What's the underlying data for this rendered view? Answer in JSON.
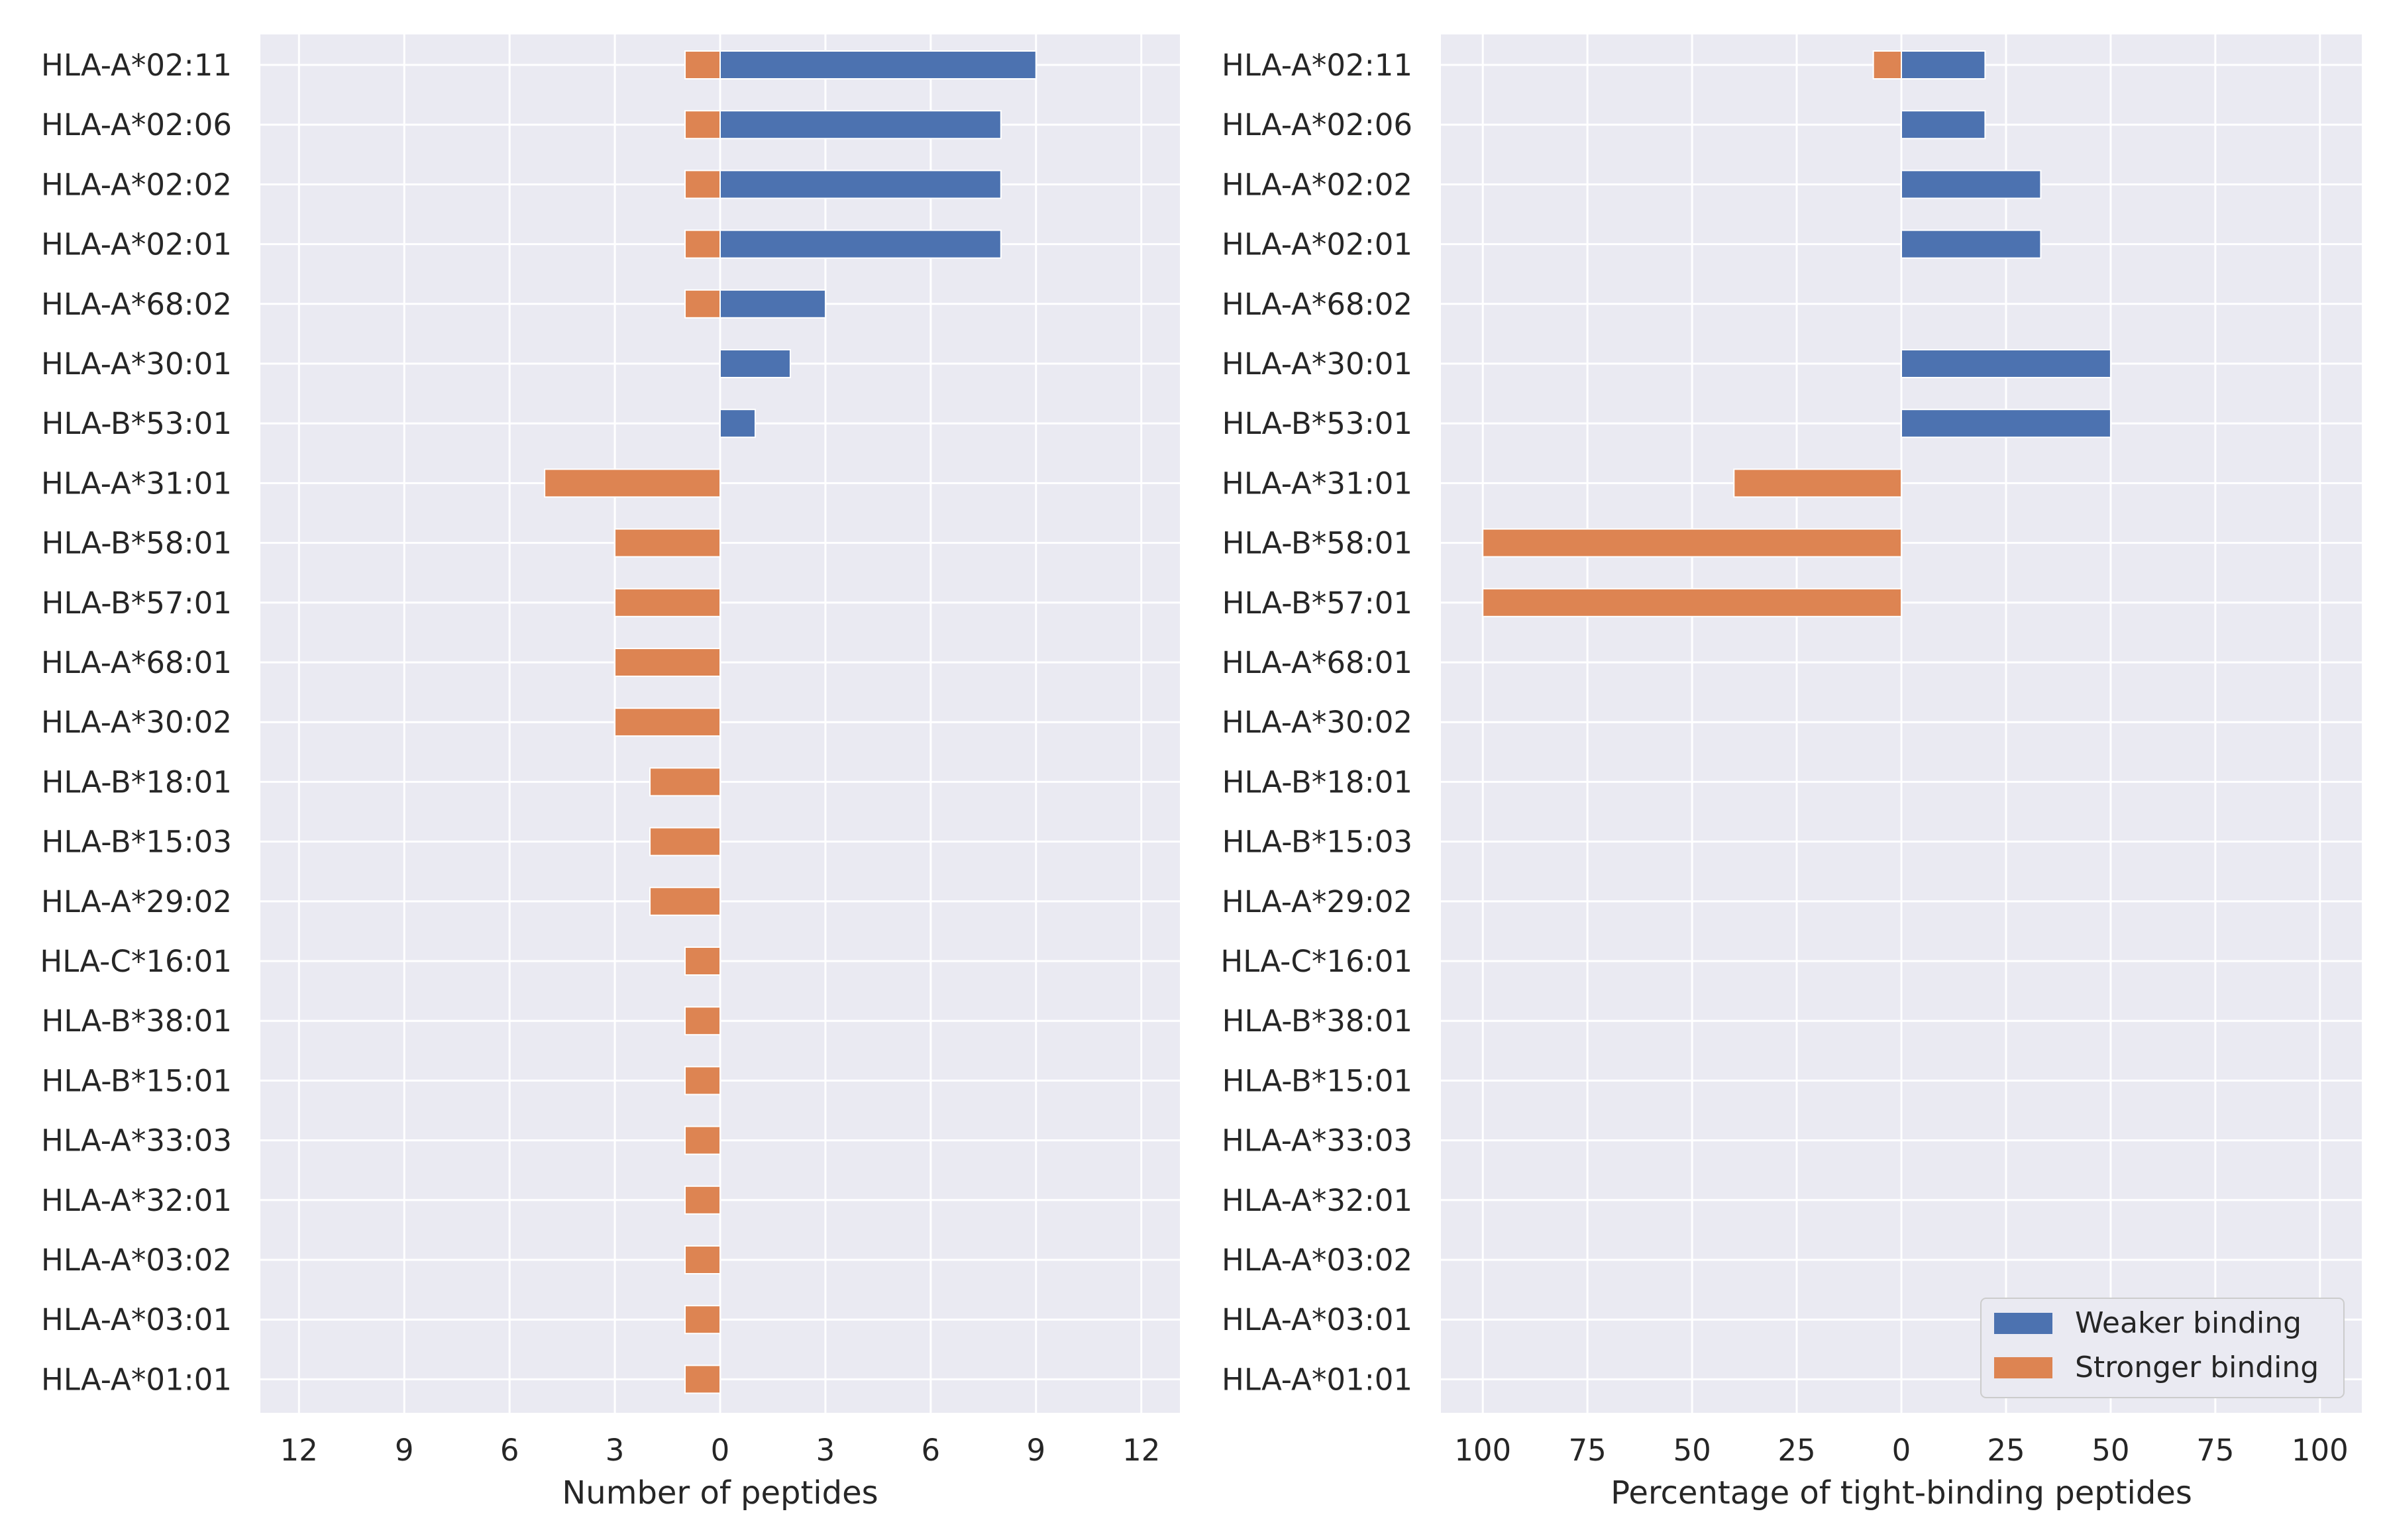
{
  "chart_data": [
    {
      "type": "bar",
      "orientation": "horizontal-diverging",
      "categories": [
        "HLA-A*02:11",
        "HLA-A*02:06",
        "HLA-A*02:02",
        "HLA-A*02:01",
        "HLA-A*68:02",
        "HLA-A*30:01",
        "HLA-B*53:01",
        "HLA-A*31:01",
        "HLA-B*58:01",
        "HLA-B*57:01",
        "HLA-A*68:01",
        "HLA-A*30:02",
        "HLA-B*18:01",
        "HLA-B*15:03",
        "HLA-A*29:02",
        "HLA-C*16:01",
        "HLA-B*38:01",
        "HLA-B*15:01",
        "HLA-A*33:03",
        "HLA-A*32:01",
        "HLA-A*03:02",
        "HLA-A*03:01",
        "HLA-A*01:01"
      ],
      "series": [
        {
          "name": "Weaker binding",
          "color": "#4c72b0",
          "direction": "right",
          "values": [
            9,
            8,
            8,
            8,
            3,
            2,
            1,
            0,
            0,
            0,
            0,
            0,
            0,
            0,
            0,
            0,
            0,
            0,
            0,
            0,
            0,
            0,
            0
          ]
        },
        {
          "name": "Stronger binding",
          "color": "#dd8452",
          "direction": "left",
          "values": [
            1,
            1,
            1,
            1,
            1,
            0,
            0,
            5,
            3,
            3,
            3,
            3,
            2,
            2,
            2,
            1,
            1,
            1,
            1,
            1,
            1,
            1,
            1
          ]
        }
      ],
      "xlim": [
        -13.1,
        13.1
      ],
      "xticks": [
        -12,
        -9,
        -6,
        -3,
        0,
        3,
        6,
        9,
        12
      ],
      "xtick_labels": [
        "12",
        "9",
        "6",
        "3",
        "0",
        "3",
        "6",
        "9",
        "12"
      ],
      "xlabel": "Number of peptides",
      "ylabel": "",
      "grid": true
    },
    {
      "type": "bar",
      "orientation": "horizontal-diverging",
      "categories": [
        "HLA-A*02:11",
        "HLA-A*02:06",
        "HLA-A*02:02",
        "HLA-A*02:01",
        "HLA-A*68:02",
        "HLA-A*30:01",
        "HLA-B*53:01",
        "HLA-A*31:01",
        "HLA-B*58:01",
        "HLA-B*57:01",
        "HLA-A*68:01",
        "HLA-A*30:02",
        "HLA-B*18:01",
        "HLA-B*15:03",
        "HLA-A*29:02",
        "HLA-C*16:01",
        "HLA-B*38:01",
        "HLA-B*15:01",
        "HLA-A*33:03",
        "HLA-A*32:01",
        "HLA-A*03:02",
        "HLA-A*03:01",
        "HLA-A*01:01"
      ],
      "series": [
        {
          "name": "Weaker binding",
          "color": "#4c72b0",
          "direction": "right",
          "values": [
            20,
            20,
            33.3,
            33.3,
            0,
            50,
            50,
            0,
            0,
            0,
            0,
            0,
            0,
            0,
            0,
            0,
            0,
            0,
            0,
            0,
            0,
            0,
            0
          ]
        },
        {
          "name": "Stronger binding",
          "color": "#dd8452",
          "direction": "left",
          "values": [
            6.7,
            0,
            0,
            0,
            0,
            0,
            0,
            40,
            100,
            100,
            0,
            0,
            0,
            0,
            0,
            0,
            0,
            0,
            0,
            0,
            0,
            0,
            0
          ]
        }
      ],
      "xlim": [
        -110,
        110
      ],
      "xticks": [
        -100,
        -75,
        -50,
        -25,
        0,
        25,
        50,
        75,
        100
      ],
      "xtick_labels": [
        "100",
        "75",
        "50",
        "25",
        "0",
        "25",
        "50",
        "75",
        "100"
      ],
      "xlabel": "Percentage of tight-binding peptides",
      "ylabel": "",
      "grid": true,
      "legend": {
        "position": "lower-right",
        "entries": [
          "Weaker binding",
          "Stronger binding"
        ]
      }
    }
  ]
}
